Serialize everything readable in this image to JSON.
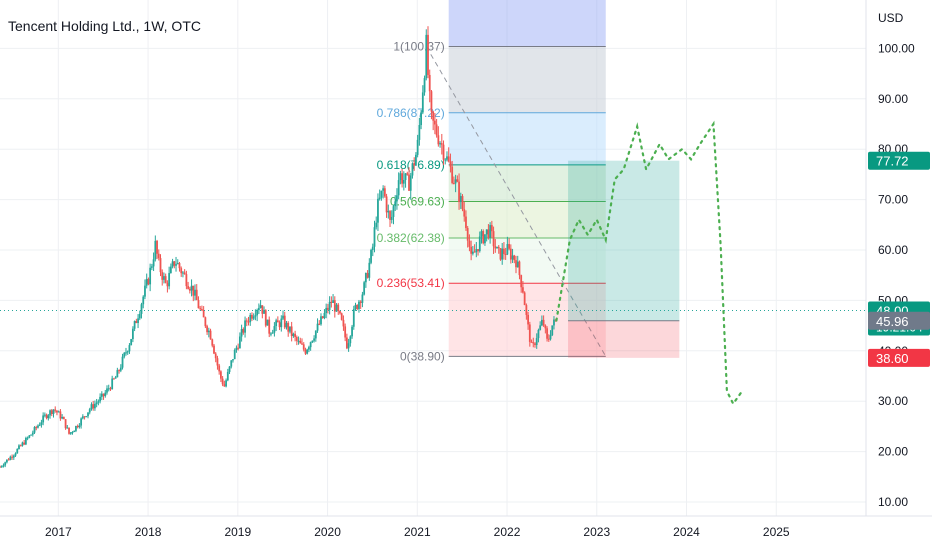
{
  "header": {
    "title": "Tencent Holding Ltd., 1W, OTC",
    "currency": "USD"
  },
  "colors": {
    "up": "#26a69a",
    "down": "#ef5350",
    "projection": "#4caf50",
    "grid": "#eef0f3",
    "last_price_line": "#26a69a"
  },
  "chart_data": {
    "type": "candlestick",
    "title": "Tencent Holding Ltd., 1W, OTC",
    "ylabel": "USD",
    "ylim": [
      8,
      108
    ],
    "x_range": [
      2016.35,
      2026.0
    ],
    "y_ticks": [
      "100.00",
      "90.00",
      "80.00",
      "70.00",
      "60.00",
      "50.00",
      "40.00",
      "30.00",
      "20.00",
      "10.00"
    ],
    "x_ticks": [
      "2017",
      "2018",
      "2019",
      "2020",
      "2021",
      "2022",
      "2023",
      "2024",
      "2025"
    ],
    "grid": true,
    "price_path": [
      [
        2016.35,
        17.0
      ],
      [
        2016.5,
        19.5
      ],
      [
        2016.7,
        23.5
      ],
      [
        2016.85,
        27.0
      ],
      [
        2016.95,
        28.5
      ],
      [
        2017.05,
        26.5
      ],
      [
        2017.12,
        23.5
      ],
      [
        2017.2,
        25.0
      ],
      [
        2017.35,
        28.5
      ],
      [
        2017.5,
        31.0
      ],
      [
        2017.65,
        35.0
      ],
      [
        2017.8,
        42.0
      ],
      [
        2017.9,
        48.0
      ],
      [
        2018.0,
        54.0
      ],
      [
        2018.05,
        58.0
      ],
      [
        2018.08,
        61.0
      ],
      [
        2018.12,
        57.0
      ],
      [
        2018.2,
        53.0
      ],
      [
        2018.3,
        58.0
      ],
      [
        2018.4,
        55.0
      ],
      [
        2018.5,
        52.0
      ],
      [
        2018.6,
        47.0
      ],
      [
        2018.7,
        43.0
      ],
      [
        2018.8,
        35.0
      ],
      [
        2018.85,
        33.0
      ],
      [
        2018.95,
        39.0
      ],
      [
        2019.1,
        46.0
      ],
      [
        2019.25,
        49.5
      ],
      [
        2019.35,
        44.0
      ],
      [
        2019.5,
        46.0
      ],
      [
        2019.65,
        42.0
      ],
      [
        2019.75,
        40.0
      ],
      [
        2019.9,
        45.0
      ],
      [
        2020.05,
        50.0
      ],
      [
        2020.15,
        46.0
      ],
      [
        2020.22,
        41.0
      ],
      [
        2020.3,
        48.0
      ],
      [
        2020.4,
        52.0
      ],
      [
        2020.5,
        60.0
      ],
      [
        2020.55,
        68.0
      ],
      [
        2020.62,
        72.0
      ],
      [
        2020.7,
        65.0
      ],
      [
        2020.8,
        75.0
      ],
      [
        2020.9,
        73.0
      ],
      [
        2021.0,
        80.0
      ],
      [
        2021.05,
        90.0
      ],
      [
        2021.1,
        100.37
      ],
      [
        2021.15,
        86.0
      ],
      [
        2021.25,
        82.0
      ],
      [
        2021.35,
        77.0
      ],
      [
        2021.45,
        72.0
      ],
      [
        2021.55,
        65.0
      ],
      [
        2021.6,
        58.0
      ],
      [
        2021.7,
        62.0
      ],
      [
        2021.8,
        64.0
      ],
      [
        2021.9,
        59.0
      ],
      [
        2022.0,
        60.0
      ],
      [
        2022.1,
        58.0
      ],
      [
        2022.18,
        52.0
      ],
      [
        2022.22,
        46.0
      ],
      [
        2022.28,
        40.0
      ],
      [
        2022.33,
        43.0
      ],
      [
        2022.4,
        46.0
      ],
      [
        2022.45,
        41.5
      ],
      [
        2022.5,
        45.0
      ],
      [
        2022.55,
        46.0
      ]
    ],
    "projection": [
      [
        2022.55,
        46.0
      ],
      [
        2022.7,
        62.0
      ],
      [
        2022.8,
        66.0
      ],
      [
        2022.9,
        63.0
      ],
      [
        2023.0,
        66.0
      ],
      [
        2023.1,
        62.0
      ],
      [
        2023.2,
        74.0
      ],
      [
        2023.3,
        76.0
      ],
      [
        2023.45,
        84.5
      ],
      [
        2023.55,
        76.0
      ],
      [
        2023.7,
        81.0
      ],
      [
        2023.8,
        78.0
      ],
      [
        2023.95,
        80.0
      ],
      [
        2024.05,
        78.0
      ],
      [
        2024.15,
        81.0
      ],
      [
        2024.3,
        85.0
      ],
      [
        2024.38,
        61.0
      ],
      [
        2024.45,
        32.0
      ],
      [
        2024.52,
        29.5
      ],
      [
        2024.62,
        32.0
      ]
    ],
    "fibonacci": {
      "x_start": 2021.35,
      "x_end": 2023.1,
      "levels": [
        {
          "label": "1(100.37)",
          "value": 100.37,
          "color": "#787b86"
        },
        {
          "label": "0.786(87.22)",
          "value": 87.22,
          "color": "#5fa8dc"
        },
        {
          "label": "0.618(76.89)",
          "value": 76.89,
          "color": "#089981"
        },
        {
          "label": "0.5(69.63)",
          "value": 69.63,
          "color": "#4caf50"
        },
        {
          "label": "0.382(62.38)",
          "value": 62.38,
          "color": "#66bb6a"
        },
        {
          "label": "0.236(53.41)",
          "value": 53.41,
          "color": "#f23645"
        },
        {
          "label": "0(38.90)",
          "value": 38.9,
          "color": "#787b86"
        }
      ]
    },
    "position_tool": {
      "x_start": 2022.68,
      "x_end": 2023.92,
      "target": 77.72,
      "entry": 45.96,
      "stop": 38.6
    },
    "last_price": 48.0,
    "price_labels": [
      {
        "value": 77.72,
        "text": "77.72",
        "bg": "#089981"
      },
      {
        "value": 48.0,
        "text": "48.00",
        "sub": "19:21:04",
        "bg": "#089981"
      },
      {
        "value": 45.96,
        "text": "45.96",
        "bg": "#707a8a"
      },
      {
        "value": 38.6,
        "text": "38.60",
        "bg": "#f23645"
      }
    ]
  }
}
